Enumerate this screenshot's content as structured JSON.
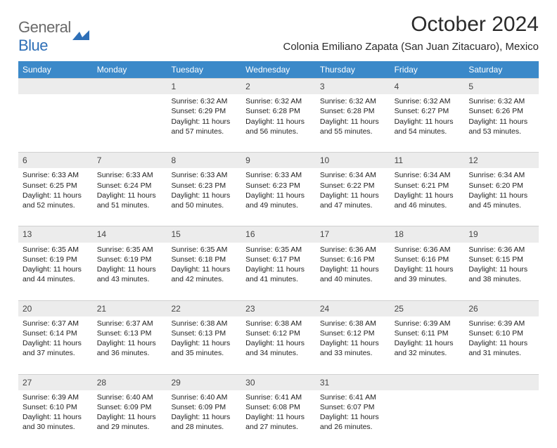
{
  "logo": {
    "part1": "General",
    "part2": "Blue"
  },
  "title": "October 2024",
  "subtitle": "Colonia Emiliano Zapata (San Juan Zitacuaro), Mexico",
  "weekdays": [
    "Sunday",
    "Monday",
    "Tuesday",
    "Wednesday",
    "Thursday",
    "Friday",
    "Saturday"
  ],
  "colors": {
    "header_bg": "#3b89c9",
    "daynum_bg": "#ececec",
    "text": "#222222",
    "logo_gray": "#6a6a6a",
    "logo_blue": "#2e6fb7"
  },
  "weeks": [
    [
      null,
      null,
      {
        "n": "1",
        "sr": "Sunrise: 6:32 AM",
        "ss": "Sunset: 6:29 PM",
        "dl": "Daylight: 11 hours and 57 minutes."
      },
      {
        "n": "2",
        "sr": "Sunrise: 6:32 AM",
        "ss": "Sunset: 6:28 PM",
        "dl": "Daylight: 11 hours and 56 minutes."
      },
      {
        "n": "3",
        "sr": "Sunrise: 6:32 AM",
        "ss": "Sunset: 6:28 PM",
        "dl": "Daylight: 11 hours and 55 minutes."
      },
      {
        "n": "4",
        "sr": "Sunrise: 6:32 AM",
        "ss": "Sunset: 6:27 PM",
        "dl": "Daylight: 11 hours and 54 minutes."
      },
      {
        "n": "5",
        "sr": "Sunrise: 6:32 AM",
        "ss": "Sunset: 6:26 PM",
        "dl": "Daylight: 11 hours and 53 minutes."
      }
    ],
    [
      {
        "n": "6",
        "sr": "Sunrise: 6:33 AM",
        "ss": "Sunset: 6:25 PM",
        "dl": "Daylight: 11 hours and 52 minutes."
      },
      {
        "n": "7",
        "sr": "Sunrise: 6:33 AM",
        "ss": "Sunset: 6:24 PM",
        "dl": "Daylight: 11 hours and 51 minutes."
      },
      {
        "n": "8",
        "sr": "Sunrise: 6:33 AM",
        "ss": "Sunset: 6:23 PM",
        "dl": "Daylight: 11 hours and 50 minutes."
      },
      {
        "n": "9",
        "sr": "Sunrise: 6:33 AM",
        "ss": "Sunset: 6:23 PM",
        "dl": "Daylight: 11 hours and 49 minutes."
      },
      {
        "n": "10",
        "sr": "Sunrise: 6:34 AM",
        "ss": "Sunset: 6:22 PM",
        "dl": "Daylight: 11 hours and 47 minutes."
      },
      {
        "n": "11",
        "sr": "Sunrise: 6:34 AM",
        "ss": "Sunset: 6:21 PM",
        "dl": "Daylight: 11 hours and 46 minutes."
      },
      {
        "n": "12",
        "sr": "Sunrise: 6:34 AM",
        "ss": "Sunset: 6:20 PM",
        "dl": "Daylight: 11 hours and 45 minutes."
      }
    ],
    [
      {
        "n": "13",
        "sr": "Sunrise: 6:35 AM",
        "ss": "Sunset: 6:19 PM",
        "dl": "Daylight: 11 hours and 44 minutes."
      },
      {
        "n": "14",
        "sr": "Sunrise: 6:35 AM",
        "ss": "Sunset: 6:19 PM",
        "dl": "Daylight: 11 hours and 43 minutes."
      },
      {
        "n": "15",
        "sr": "Sunrise: 6:35 AM",
        "ss": "Sunset: 6:18 PM",
        "dl": "Daylight: 11 hours and 42 minutes."
      },
      {
        "n": "16",
        "sr": "Sunrise: 6:35 AM",
        "ss": "Sunset: 6:17 PM",
        "dl": "Daylight: 11 hours and 41 minutes."
      },
      {
        "n": "17",
        "sr": "Sunrise: 6:36 AM",
        "ss": "Sunset: 6:16 PM",
        "dl": "Daylight: 11 hours and 40 minutes."
      },
      {
        "n": "18",
        "sr": "Sunrise: 6:36 AM",
        "ss": "Sunset: 6:16 PM",
        "dl": "Daylight: 11 hours and 39 minutes."
      },
      {
        "n": "19",
        "sr": "Sunrise: 6:36 AM",
        "ss": "Sunset: 6:15 PM",
        "dl": "Daylight: 11 hours and 38 minutes."
      }
    ],
    [
      {
        "n": "20",
        "sr": "Sunrise: 6:37 AM",
        "ss": "Sunset: 6:14 PM",
        "dl": "Daylight: 11 hours and 37 minutes."
      },
      {
        "n": "21",
        "sr": "Sunrise: 6:37 AM",
        "ss": "Sunset: 6:13 PM",
        "dl": "Daylight: 11 hours and 36 minutes."
      },
      {
        "n": "22",
        "sr": "Sunrise: 6:38 AM",
        "ss": "Sunset: 6:13 PM",
        "dl": "Daylight: 11 hours and 35 minutes."
      },
      {
        "n": "23",
        "sr": "Sunrise: 6:38 AM",
        "ss": "Sunset: 6:12 PM",
        "dl": "Daylight: 11 hours and 34 minutes."
      },
      {
        "n": "24",
        "sr": "Sunrise: 6:38 AM",
        "ss": "Sunset: 6:12 PM",
        "dl": "Daylight: 11 hours and 33 minutes."
      },
      {
        "n": "25",
        "sr": "Sunrise: 6:39 AM",
        "ss": "Sunset: 6:11 PM",
        "dl": "Daylight: 11 hours and 32 minutes."
      },
      {
        "n": "26",
        "sr": "Sunrise: 6:39 AM",
        "ss": "Sunset: 6:10 PM",
        "dl": "Daylight: 11 hours and 31 minutes."
      }
    ],
    [
      {
        "n": "27",
        "sr": "Sunrise: 6:39 AM",
        "ss": "Sunset: 6:10 PM",
        "dl": "Daylight: 11 hours and 30 minutes."
      },
      {
        "n": "28",
        "sr": "Sunrise: 6:40 AM",
        "ss": "Sunset: 6:09 PM",
        "dl": "Daylight: 11 hours and 29 minutes."
      },
      {
        "n": "29",
        "sr": "Sunrise: 6:40 AM",
        "ss": "Sunset: 6:09 PM",
        "dl": "Daylight: 11 hours and 28 minutes."
      },
      {
        "n": "30",
        "sr": "Sunrise: 6:41 AM",
        "ss": "Sunset: 6:08 PM",
        "dl": "Daylight: 11 hours and 27 minutes."
      },
      {
        "n": "31",
        "sr": "Sunrise: 6:41 AM",
        "ss": "Sunset: 6:07 PM",
        "dl": "Daylight: 11 hours and 26 minutes."
      },
      null,
      null
    ]
  ]
}
